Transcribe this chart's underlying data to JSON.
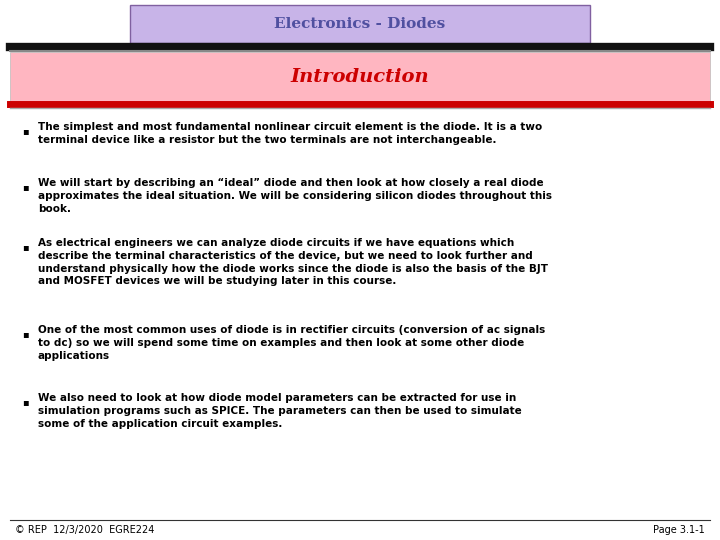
{
  "title": "Electronics - Diodes",
  "subtitle": "Introduction",
  "title_bg": "#c8b4e8",
  "title_border": "#8060a0",
  "subtitle_bg": "#ffb6c1",
  "subtitle_border": "#cc0000",
  "title_color": "#5050a0",
  "subtitle_color": "#cc0000",
  "body_bg": "#ffffff",
  "header_bar_color": "#111111",
  "red_bar_color": "#cc0000",
  "bullet_points": [
    "The simplest and most fundamental nonlinear circuit element is the diode. It is a two\nterminal device like a resistor but the two terminals are not interchangeable.",
    "We will start by describing an “ideal” diode and then look at how closely a real diode\napproximates the ideal situation. We will be considering silicon diodes throughout this\nbook.",
    "As electrical engineers we can analyze diode circuits if we have equations which\ndescribe the terminal characteristics of the device, but we need to look further and\nunderstand physically how the diode works since the diode is also the basis of the BJT\nand MOSFET devices we will be studying later in this course.",
    "One of the most common uses of diode is in rectifier circuits (conversion of ac signals\nto dc) so we will spend some time on examples and then look at some other diode\napplications",
    "We also need to look at how diode model parameters can be extracted for use in\nsimulation programs such as SPICE. The parameters can then be used to simulate\nsome of the application circuit examples."
  ],
  "footer_left": "© REP  12/3/2020  EGRE224",
  "footer_right": "Page 3.1-1",
  "text_color": "#000000",
  "footer_color": "#000000",
  "font_size_title": 11,
  "font_size_subtitle": 14,
  "font_size_body": 7.5,
  "font_size_footer": 7.0
}
